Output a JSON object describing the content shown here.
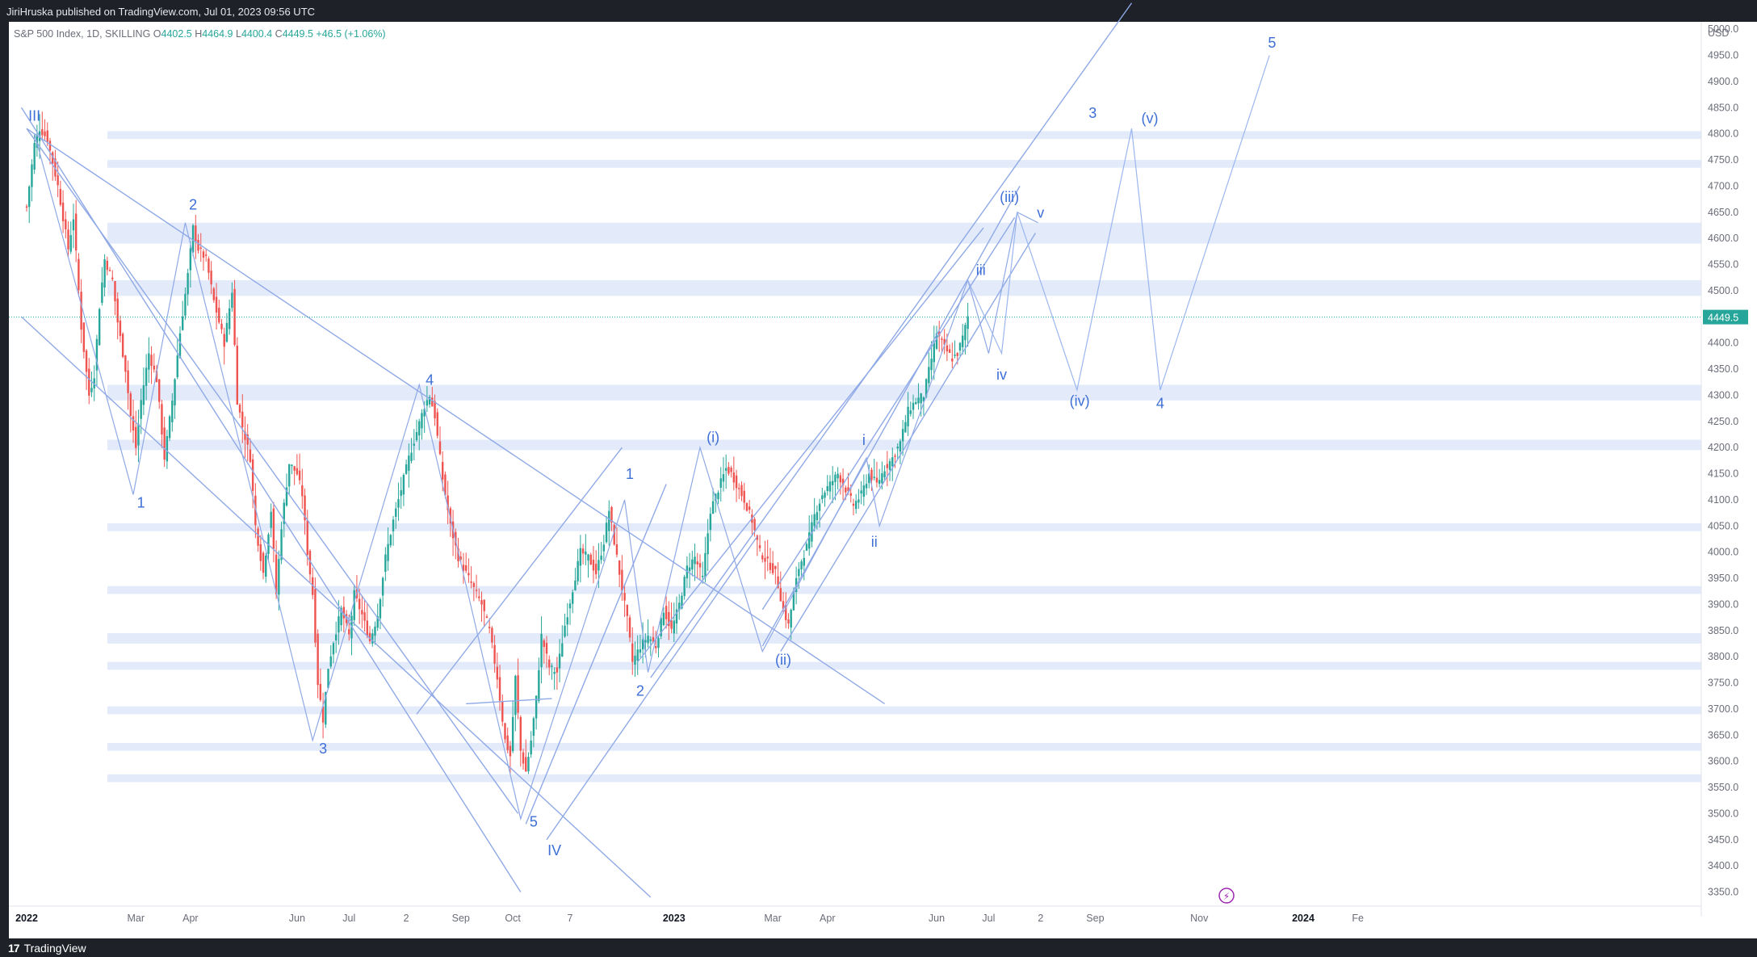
{
  "header": {
    "published_text": "JiriHruska published on TradingView.com, Jul 01, 2023 09:56 UTC"
  },
  "legend": {
    "symbol": "S&P 500 Index, 1D, SKILLING",
    "open_label": "O",
    "open": "4402.5",
    "high_label": "H",
    "high": "4464.9",
    "low_label": "L",
    "low": "4400.4",
    "close_label": "C",
    "close": "4449.5",
    "change": "+46.5 (+1.06%)"
  },
  "footer": {
    "brand": "TradingView"
  },
  "colors": {
    "up": "#26a69a",
    "down": "#ef5350",
    "wave": "#3d6fd6",
    "zone": "#e3ebfb",
    "line": "#8fa9e6"
  },
  "chart_data": {
    "type": "candlestick",
    "currency": "USD",
    "last_price": 4449.5,
    "ylim": [
      3340,
      5050
    ],
    "y_ticks": [
      3350,
      3400,
      3450,
      3500,
      3550,
      3600,
      3650,
      3700,
      3750,
      3800,
      3850,
      3900,
      3950,
      4000,
      4050,
      4100,
      4150,
      4200,
      4250,
      4300,
      4350,
      4400,
      4450,
      4500,
      4550,
      4600,
      4650,
      4700,
      4750,
      4800,
      4850,
      4900,
      4950,
      5000
    ],
    "x_ticks": [
      {
        "label": "2022",
        "t": 0,
        "bold": true
      },
      {
        "label": "Mar",
        "t": 42
      },
      {
        "label": "Apr",
        "t": 63
      },
      {
        "label": "Jun",
        "t": 104
      },
      {
        "label": "Jul",
        "t": 124
      },
      {
        "label": "2",
        "t": 146
      },
      {
        "label": "Sep",
        "t": 167
      },
      {
        "label": "Oct",
        "t": 187
      },
      {
        "label": "7",
        "t": 209
      },
      {
        "label": "2023",
        "t": 249,
        "bold": true
      },
      {
        "label": "Mar",
        "t": 287
      },
      {
        "label": "Apr",
        "t": 308
      },
      {
        "label": "Jun",
        "t": 350
      },
      {
        "label": "Jul",
        "t": 370
      },
      {
        "label": "2",
        "t": 390
      },
      {
        "label": "Sep",
        "t": 411
      },
      {
        "label": "Nov",
        "t": 451
      },
      {
        "label": "2024",
        "t": 491,
        "bold": true
      },
      {
        "label": "Fe",
        "t": 512
      }
    ],
    "price_path": [
      [
        0,
        4660
      ],
      [
        3,
        4780
      ],
      [
        5,
        4810
      ],
      [
        8,
        4790
      ],
      [
        12,
        4700
      ],
      [
        16,
        4580
      ],
      [
        18,
        4640
      ],
      [
        21,
        4430
      ],
      [
        24,
        4300
      ],
      [
        26,
        4340
      ],
      [
        28,
        4470
      ],
      [
        30,
        4560
      ],
      [
        33,
        4520
      ],
      [
        35,
        4440
      ],
      [
        38,
        4350
      ],
      [
        40,
        4260
      ],
      [
        42,
        4200
      ],
      [
        44,
        4290
      ],
      [
        47,
        4380
      ],
      [
        50,
        4330
      ],
      [
        53,
        4180
      ],
      [
        56,
        4290
      ],
      [
        59,
        4420
      ],
      [
        62,
        4530
      ],
      [
        64,
        4620
      ],
      [
        66,
        4580
      ],
      [
        69,
        4560
      ],
      [
        72,
        4480
      ],
      [
        76,
        4400
      ],
      [
        79,
        4500
      ],
      [
        81,
        4290
      ],
      [
        83,
        4240
      ],
      [
        86,
        4180
      ],
      [
        88,
        4050
      ],
      [
        91,
        3960
      ],
      [
        94,
        4080
      ],
      [
        96,
        3920
      ],
      [
        98,
        4050
      ],
      [
        101,
        4170
      ],
      [
        104,
        4150
      ],
      [
        106,
        4110
      ],
      [
        108,
        4000
      ],
      [
        110,
        3920
      ],
      [
        112,
        3750
      ],
      [
        114,
        3680
      ],
      [
        116,
        3780
      ],
      [
        118,
        3830
      ],
      [
        121,
        3890
      ],
      [
        124,
        3840
      ],
      [
        126,
        3920
      ],
      [
        129,
        3880
      ],
      [
        132,
        3830
      ],
      [
        135,
        3880
      ],
      [
        138,
        3990
      ],
      [
        141,
        4060
      ],
      [
        144,
        4120
      ],
      [
        147,
        4180
      ],
      [
        150,
        4230
      ],
      [
        153,
        4280
      ],
      [
        155,
        4300
      ],
      [
        157,
        4260
      ],
      [
        160,
        4140
      ],
      [
        163,
        4050
      ],
      [
        166,
        3990
      ],
      [
        169,
        3960
      ],
      [
        172,
        3930
      ],
      [
        175,
        3900
      ],
      [
        178,
        3850
      ],
      [
        181,
        3760
      ],
      [
        184,
        3640
      ],
      [
        186,
        3610
      ],
      [
        188,
        3760
      ],
      [
        190,
        3620
      ],
      [
        192,
        3580
      ],
      [
        194,
        3640
      ],
      [
        196,
        3720
      ],
      [
        198,
        3840
      ],
      [
        201,
        3780
      ],
      [
        204,
        3770
      ],
      [
        207,
        3860
      ],
      [
        210,
        3930
      ],
      [
        213,
        4000
      ],
      [
        216,
        3990
      ],
      [
        219,
        3960
      ],
      [
        222,
        4020
      ],
      [
        224,
        4080
      ],
      [
        226,
        4020
      ],
      [
        228,
        3960
      ],
      [
        231,
        3870
      ],
      [
        233,
        3790
      ],
      [
        236,
        3820
      ],
      [
        239,
        3840
      ],
      [
        242,
        3820
      ],
      [
        245,
        3890
      ],
      [
        248,
        3850
      ],
      [
        251,
        3900
      ],
      [
        254,
        3970
      ],
      [
        257,
        3990
      ],
      [
        260,
        3950
      ],
      [
        263,
        4080
      ],
      [
        266,
        4120
      ],
      [
        269,
        4160
      ],
      [
        271,
        4150
      ],
      [
        273,
        4130
      ],
      [
        276,
        4100
      ],
      [
        279,
        4060
      ],
      [
        282,
        4000
      ],
      [
        285,
        3980
      ],
      [
        288,
        3960
      ],
      [
        291,
        3890
      ],
      [
        293,
        3860
      ],
      [
        295,
        3920
      ],
      [
        297,
        3970
      ],
      [
        300,
        4010
      ],
      [
        303,
        4070
      ],
      [
        306,
        4110
      ],
      [
        309,
        4130
      ],
      [
        312,
        4150
      ],
      [
        315,
        4120
      ],
      [
        318,
        4090
      ],
      [
        321,
        4110
      ],
      [
        324,
        4150
      ],
      [
        327,
        4130
      ],
      [
        330,
        4160
      ],
      [
        333,
        4180
      ],
      [
        336,
        4210
      ],
      [
        339,
        4270
      ],
      [
        342,
        4290
      ],
      [
        345,
        4300
      ],
      [
        348,
        4370
      ],
      [
        350,
        4420
      ],
      [
        353,
        4390
      ],
      [
        356,
        4370
      ],
      [
        358,
        4380
      ],
      [
        360,
        4410
      ],
      [
        362,
        4450
      ]
    ],
    "fib_zones": [
      {
        "x0": 0,
        "x1": 512,
        "y0": 4790,
        "y1": 4805
      },
      {
        "x0": 0,
        "x1": 512,
        "y0": 4735,
        "y1": 4750
      },
      {
        "x0": 0,
        "x1": 512,
        "y0": 4590,
        "y1": 4630
      },
      {
        "x0": 0,
        "x1": 512,
        "y0": 4490,
        "y1": 4520
      },
      {
        "x0": 0,
        "x1": 512,
        "y0": 4290,
        "y1": 4320
      },
      {
        "x0": 0,
        "x1": 512,
        "y0": 4195,
        "y1": 4215
      },
      {
        "x0": 0,
        "x1": 512,
        "y0": 4040,
        "y1": 4055
      },
      {
        "x0": 0,
        "x1": 512,
        "y0": 3920,
        "y1": 3935
      },
      {
        "x0": 0,
        "x1": 512,
        "y0": 3825,
        "y1": 3845
      },
      {
        "x0": 0,
        "x1": 512,
        "y0": 3775,
        "y1": 3790
      },
      {
        "x0": 0,
        "x1": 512,
        "y0": 3690,
        "y1": 3705
      },
      {
        "x0": 0,
        "x1": 512,
        "y0": 3620,
        "y1": 3635
      },
      {
        "x0": 0,
        "x1": 512,
        "y0": 3560,
        "y1": 3575
      }
    ],
    "wave_labels": [
      {
        "text": "III",
        "t": 3,
        "v": 4825
      },
      {
        "text": "1",
        "t": 44,
        "v": 4085
      },
      {
        "text": "2",
        "t": 64,
        "v": 4655
      },
      {
        "text": "3",
        "t": 114,
        "v": 3615
      },
      {
        "text": "4",
        "t": 155,
        "v": 4320
      },
      {
        "text": "5",
        "t": 195,
        "v": 3475
      },
      {
        "text": "IV",
        "t": 203,
        "v": 3420
      },
      {
        "text": "1",
        "t": 232,
        "v": 4140
      },
      {
        "text": "2",
        "t": 236,
        "v": 3725
      },
      {
        "text": "(i)",
        "t": 264,
        "v": 4210
      },
      {
        "text": "(ii)",
        "t": 291,
        "v": 3785
      },
      {
        "text": "i",
        "t": 322,
        "v": 4205
      },
      {
        "text": "ii",
        "t": 326,
        "v": 4010
      },
      {
        "text": "(iii)",
        "t": 378,
        "v": 4670
      },
      {
        "text": "iii",
        "t": 367,
        "v": 4530
      },
      {
        "text": "v",
        "t": 390,
        "v": 4640
      },
      {
        "text": "iv",
        "t": 375,
        "v": 4330
      },
      {
        "text": "(iv)",
        "t": 405,
        "v": 4280
      },
      {
        "text": "3",
        "t": 410,
        "v": 4830
      },
      {
        "text": "(v)",
        "t": 432,
        "v": 4820
      },
      {
        "text": "4",
        "t": 436,
        "v": 4275
      },
      {
        "text": "5",
        "t": 479,
        "v": 4965
      }
    ]
  }
}
